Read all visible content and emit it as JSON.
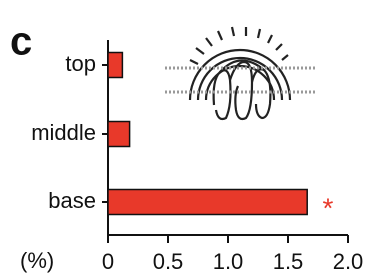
{
  "chart_data": {
    "type": "bar",
    "orientation": "horizontal",
    "panel_label": "c",
    "categories": [
      "top",
      "middle",
      "base"
    ],
    "values": [
      0.12,
      0.18,
      1.66
    ],
    "color": "#e8392a",
    "xlim": [
      0,
      2.0
    ],
    "xticks": [
      0,
      0.5,
      {
        "value": 1,
        "label": "1.0"
      },
      1.5,
      {
        "value": 2,
        "label": "2.0"
      }
    ],
    "x_label": "(%)",
    "annotation": {
      "text": "*",
      "color": "#e8392a"
    }
  }
}
